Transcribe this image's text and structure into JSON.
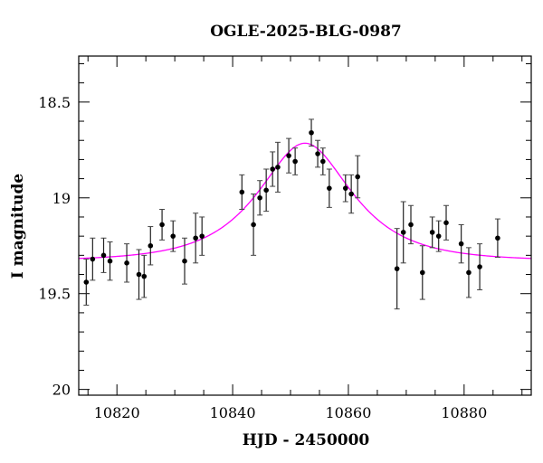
{
  "chart_data": {
    "type": "scatter",
    "title": "OGLE-2025-BLG-0987",
    "xlabel": "HJD - 2450000",
    "ylabel": "I magnitude",
    "xlim": [
      10813.4,
      10891.6
    ],
    "ylim": [
      20.03,
      18.26
    ],
    "y_inverted": true,
    "grid": false,
    "x_ticks": [
      10820,
      10840,
      10860,
      10880
    ],
    "x_tick_labels": [
      "10820",
      "10840",
      "10860",
      "10880"
    ],
    "x_minor_step": 5,
    "y_ticks": [
      18.5,
      19,
      19.5,
      20
    ],
    "y_tick_labels": [
      "18.5",
      "19",
      "19.5",
      "20"
    ],
    "y_minor_step": 0.1,
    "colors": {
      "points": "#000000",
      "model": "#ff00ff"
    },
    "series": [
      {
        "kind": "points-with-errorbars",
        "x": [
          10814.7,
          10815.8,
          10817.7,
          10818.8,
          10821.7,
          10823.8,
          10824.7,
          10825.8,
          10827.8,
          10829.7,
          10831.7,
          10833.6,
          10834.7,
          10841.6,
          10843.6,
          10844.7,
          10845.8,
          10846.9,
          10847.8,
          10849.7,
          10850.8,
          10853.6,
          10854.7,
          10855.6,
          10856.7,
          10859.5,
          10860.5,
          10861.6,
          10868.4,
          10869.5,
          10870.8,
          10872.8,
          10874.5,
          10875.6,
          10876.9,
          10879.5,
          10880.8,
          10882.7,
          10885.8
        ],
        "y": [
          19.44,
          19.32,
          19.3,
          19.33,
          19.34,
          19.4,
          19.41,
          19.25,
          19.14,
          19.2,
          19.33,
          19.21,
          19.2,
          18.97,
          19.14,
          19.0,
          18.96,
          18.85,
          18.84,
          18.78,
          18.81,
          18.66,
          18.77,
          18.81,
          18.95,
          18.95,
          18.98,
          18.89,
          19.37,
          19.18,
          19.14,
          19.39,
          19.18,
          19.2,
          19.13,
          19.24,
          19.39,
          19.36,
          19.21
        ],
        "yerr": [
          0.12,
          0.11,
          0.09,
          0.1,
          0.1,
          0.13,
          0.11,
          0.1,
          0.08,
          0.08,
          0.12,
          0.13,
          0.1,
          0.09,
          0.16,
          0.09,
          0.11,
          0.09,
          0.13,
          0.09,
          0.07,
          0.07,
          0.07,
          0.07,
          0.1,
          0.07,
          0.1,
          0.11,
          0.21,
          0.16,
          0.1,
          0.14,
          0.08,
          0.08,
          0.09,
          0.1,
          0.13,
          0.12,
          0.1
        ]
      },
      {
        "kind": "model-curve",
        "model": {
          "type": "point-lens",
          "t0": 10852.5,
          "u0": 0.655,
          "tE": 12.2,
          "baseline": 19.33
        }
      }
    ]
  }
}
